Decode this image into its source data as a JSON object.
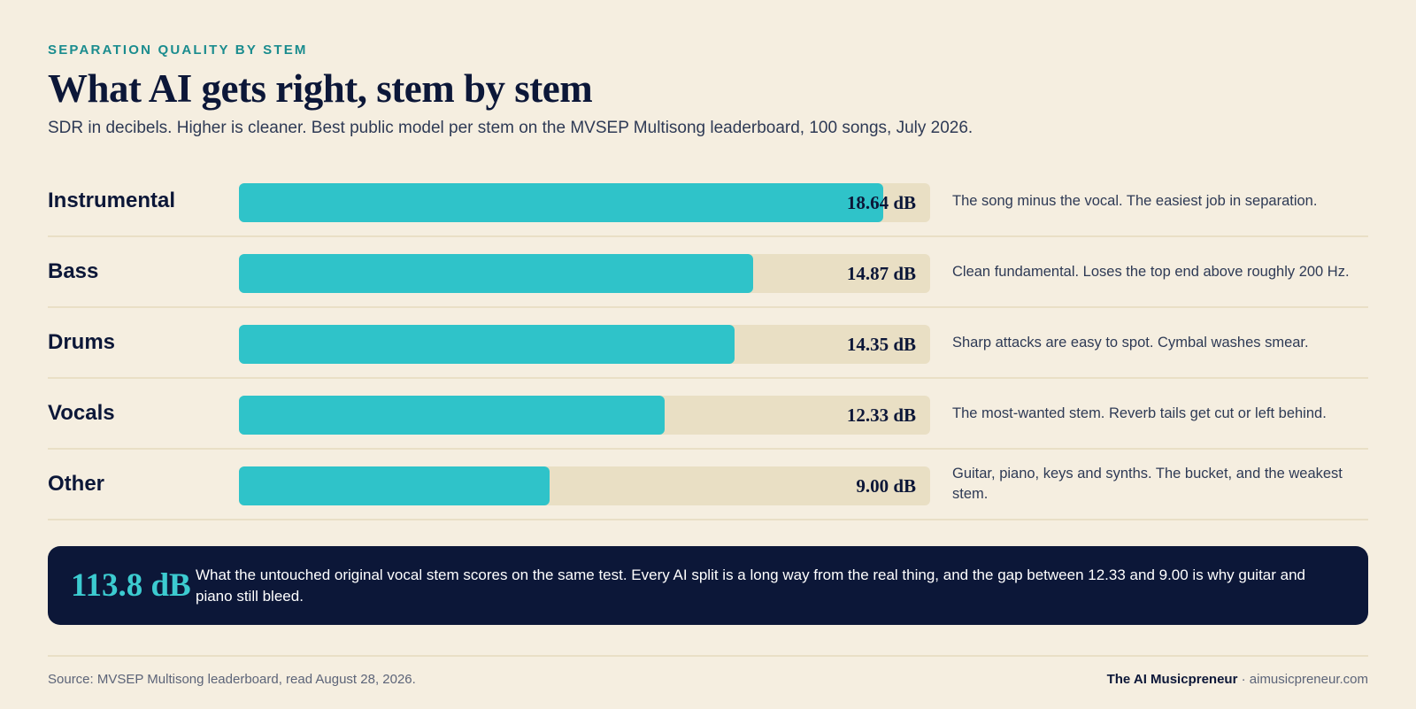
{
  "header": {
    "eyebrow": "SEPARATION QUALITY BY STEM",
    "title": "What AI gets right, stem by stem",
    "subtitle": "SDR in decibels. Higher is cleaner. Best public model per stem on the MVSEP Multisong leaderboard, 100 songs, July 2026."
  },
  "colors": {
    "accent": "#2fc3c9",
    "track": "#e9dfc4",
    "ink": "#0c1738",
    "background": "#f5eee0"
  },
  "chart_data": {
    "type": "bar",
    "orientation": "horizontal",
    "unit": "dB",
    "xlim": [
      0,
      20
    ],
    "grid": false,
    "categories": [
      "Instrumental",
      "Bass",
      "Drums",
      "Vocals",
      "Other"
    ],
    "values": [
      18.64,
      14.87,
      14.35,
      12.33,
      9.0
    ],
    "value_labels": [
      "18.64 dB",
      "14.87 dB",
      "14.35 dB",
      "12.33 dB",
      "9.00 dB"
    ],
    "notes": [
      "The song minus the vocal. The easiest job in separation.",
      "Clean fundamental. Loses the top end above roughly 200 Hz.",
      "Sharp attacks are easy to spot. Cymbal washes smear.",
      "The most-wanted stem. Reverb tails get cut or left behind.",
      "Guitar, piano, keys and synths. The bucket, and the weakest stem."
    ]
  },
  "callout": {
    "value": "113.8 dB",
    "text": "What the untouched original vocal stem scores on the same test. Every AI split is a long way from the real thing, and the gap between 12.33 and 9.00 is why guitar and piano still bleed."
  },
  "footer": {
    "source": "Source: MVSEP Multisong leaderboard, read August 28, 2026.",
    "brand_name": "The AI Musicpreneur",
    "brand_separator": " · ",
    "brand_url": "aimusicpreneur.com"
  }
}
